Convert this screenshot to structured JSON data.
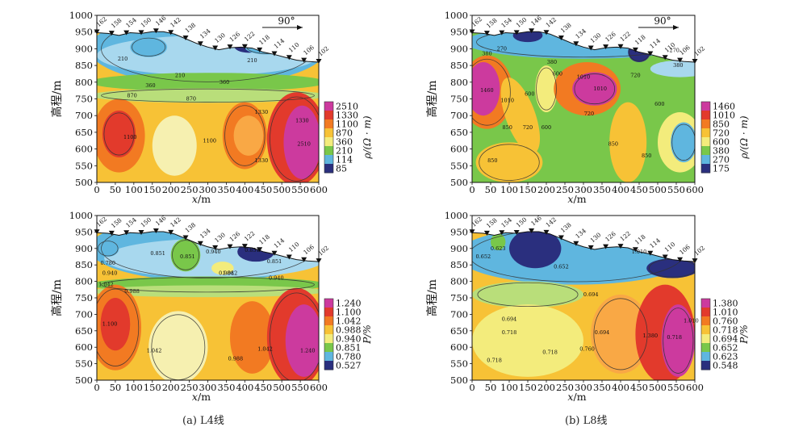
{
  "captions": {
    "a": "(a)  L4线",
    "b": "(b)  L8线"
  },
  "chart_data": [
    {
      "type": "heatmap",
      "panel": "a-top",
      "xlabel_var": "x",
      "xlabel_unit": "/m",
      "ylabel": "高程/m",
      "x_ticks": [
        0,
        50,
        100,
        150,
        200,
        250,
        300,
        350,
        400,
        450,
        500,
        550,
        600
      ],
      "y_ticks": [
        500,
        550,
        600,
        650,
        700,
        750,
        800,
        850,
        900,
        950,
        1000
      ],
      "xlim": [
        0,
        600
      ],
      "ylim": [
        500,
        1000
      ],
      "arrow_label": "90°",
      "stations": [
        "162",
        "158",
        "154",
        "150",
        "146",
        "142",
        "138",
        "134",
        "130",
        "126",
        "122",
        "118",
        "114",
        "110",
        "106",
        "102"
      ],
      "colorbar": {
        "label": "ρ/(Ω · m)",
        "ticks": [
          "2510",
          "1330",
          "1100",
          "870",
          "360",
          "210",
          "114",
          "85"
        ],
        "colors": [
          "#cc3a9e",
          "#e23a2c",
          "#f27a22",
          "#f7c236",
          "#f3ec7c",
          "#79c74a",
          "#5fb6df",
          "#2a2f7e"
        ]
      },
      "contour_labels": [
        "210",
        "210",
        "210",
        "360",
        "360",
        "870",
        "870",
        "1100",
        "1100",
        "1330",
        "1330",
        "1330",
        "2510"
      ]
    },
    {
      "type": "heatmap",
      "panel": "a-bottom",
      "xlabel_var": "x",
      "xlabel_unit": "/m",
      "ylabel": "高程/m",
      "x_ticks": [
        0,
        50,
        100,
        150,
        200,
        250,
        300,
        350,
        400,
        450,
        500,
        550,
        600
      ],
      "y_ticks": [
        500,
        550,
        600,
        650,
        700,
        750,
        800,
        850,
        900,
        950,
        1000
      ],
      "xlim": [
        0,
        600
      ],
      "ylim": [
        500,
        1000
      ],
      "stations": [
        "162",
        "158",
        "154",
        "150",
        "146",
        "142",
        "138",
        "134",
        "130",
        "126",
        "122",
        "118",
        "114",
        "110",
        "106",
        "102"
      ],
      "colorbar": {
        "label": "P/%",
        "ticks": [
          "1.240",
          "1.100",
          "1.042",
          "0.988",
          "0.940",
          "0.851",
          "0.780",
          "0.527"
        ],
        "colors": [
          "#cc3a9e",
          "#e23a2c",
          "#f27a22",
          "#f7c236",
          "#f3ec7c",
          "#79c74a",
          "#5fb6df",
          "#2a2f7e"
        ]
      },
      "contour_labels": [
        "0.780",
        "0.851",
        "0.940",
        "1.042",
        "1.100",
        "0.988",
        "1.042",
        "0.851",
        "0.940",
        "0.988",
        "0.940",
        "1.042",
        "1.042",
        "0.988",
        "1.240",
        "0.851",
        "0.851"
      ]
    },
    {
      "type": "heatmap",
      "panel": "b-top",
      "xlabel_var": "x",
      "xlabel_unit": "/m",
      "ylabel": "高程/m",
      "x_ticks": [
        0,
        50,
        100,
        150,
        200,
        250,
        300,
        350,
        400,
        450,
        500,
        550,
        600
      ],
      "y_ticks": [
        500,
        550,
        600,
        650,
        700,
        750,
        800,
        850,
        900,
        950,
        1000
      ],
      "xlim": [
        0,
        600
      ],
      "ylim": [
        500,
        1000
      ],
      "arrow_label": "90°",
      "stations": [
        "162",
        "158",
        "154",
        "150",
        "146",
        "142",
        "138",
        "134",
        "130",
        "126",
        "122",
        "118",
        "114",
        "110",
        "106",
        "102"
      ],
      "colorbar": {
        "label": "ρ/(Ω · m)",
        "ticks": [
          "1460",
          "1010",
          "850",
          "720",
          "600",
          "380",
          "270",
          "175"
        ],
        "colors": [
          "#cc3a9e",
          "#e23a2c",
          "#f27a22",
          "#f7c236",
          "#f3ec7c",
          "#79c74a",
          "#5fb6df",
          "#2a2f7e"
        ]
      },
      "contour_labels": [
        "380",
        "270",
        "380",
        "600",
        "1460",
        "1010",
        "850",
        "850",
        "720",
        "600",
        "600",
        "1010",
        "720",
        "1010",
        "720",
        "850",
        "850",
        "600",
        "380",
        "270"
      ]
    },
    {
      "type": "heatmap",
      "panel": "b-bottom",
      "xlabel_var": "x",
      "xlabel_unit": "/m",
      "ylabel": "高程/m",
      "x_ticks": [
        0,
        50,
        100,
        150,
        200,
        250,
        300,
        350,
        400,
        450,
        500,
        550,
        600
      ],
      "y_ticks": [
        500,
        550,
        600,
        650,
        700,
        750,
        800,
        850,
        900,
        950,
        1000
      ],
      "xlim": [
        0,
        600
      ],
      "ylim": [
        500,
        1000
      ],
      "stations": [
        "162",
        "158",
        "154",
        "150",
        "146",
        "142",
        "138",
        "134",
        "130",
        "126",
        "122",
        "118",
        "114",
        "110",
        "106",
        "102"
      ],
      "colorbar": {
        "label": "P/%",
        "ticks": [
          "1.380",
          "1.010",
          "0.760",
          "0.718",
          "0.694",
          "0.652",
          "0.623",
          "0.548"
        ],
        "colors": [
          "#cc3a9e",
          "#e23a2c",
          "#f27a22",
          "#f7c236",
          "#f3ec7c",
          "#79c74a",
          "#5fb6df",
          "#2a2f7e"
        ]
      },
      "contour_labels": [
        "0.652",
        "0.623",
        "0.652",
        "0.694",
        "0.718",
        "0.718",
        "0.718",
        "0.760",
        "0.694",
        "0.694",
        "1.010",
        "1.010",
        "1.380",
        "0.718"
      ]
    }
  ]
}
